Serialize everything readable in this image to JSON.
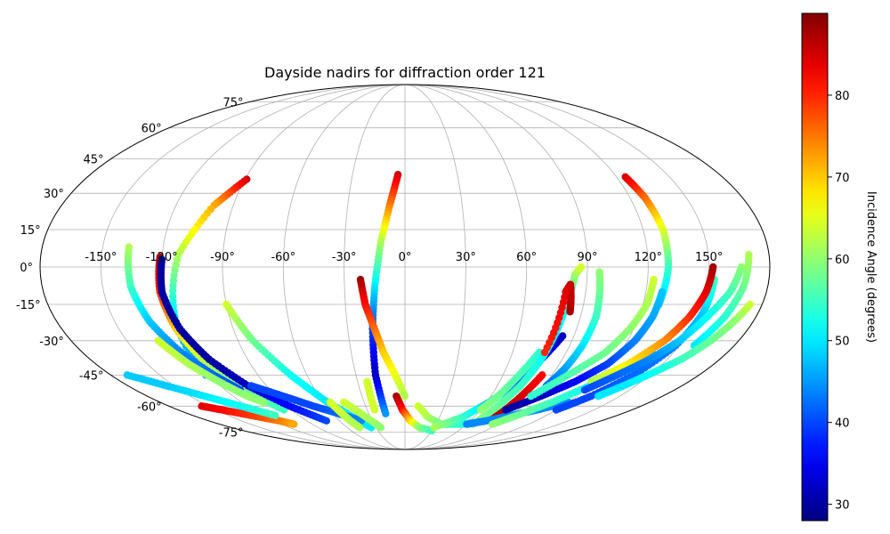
{
  "chart_data": {
    "type": "scatter",
    "projection": "mollweide",
    "title": "Dayside nadirs for diffraction order 121",
    "xlabel": "",
    "ylabel": "",
    "lon_ticks": [
      "-150°",
      "-120°",
      "-90°",
      "-60°",
      "-30°",
      "0°",
      "30°",
      "60°",
      "90°",
      "120°",
      "150°"
    ],
    "lon_tick_values": [
      -150,
      -120,
      -90,
      -60,
      -30,
      0,
      30,
      60,
      90,
      120,
      150
    ],
    "lat_ticks": [
      "75°",
      "60°",
      "45°",
      "30°",
      "15°",
      "0°",
      "-15°",
      "-30°",
      "-45°",
      "-60°",
      "-75°"
    ],
    "lat_tick_values": [
      75,
      60,
      45,
      30,
      15,
      0,
      -15,
      -30,
      -45,
      -60,
      -75
    ],
    "grid": true,
    "colormap": "jet",
    "colorbar": {
      "label": "Incidence Angle (degrees)",
      "range": [
        28,
        90
      ],
      "ticks": [
        "30",
        "40",
        "50",
        "60",
        "70",
        "80"
      ],
      "tick_values": [
        30,
        40,
        50,
        60,
        70,
        80
      ]
    },
    "series": [
      {
        "lon": [
          -89,
          -100,
          -112,
          -118,
          -122
        ],
        "lat": [
          36,
          25,
          5,
          -20,
          -45
        ],
        "inc": [
          85,
          72,
          62,
          50,
          44
        ]
      },
      {
        "lon": [
          -121,
          -122,
          -120,
          -115,
          -108,
          -96
        ],
        "lat": [
          4,
          -10,
          -25,
          -40,
          -52,
          -62
        ],
        "inc": [
          88,
          80,
          70,
          62,
          58,
          55
        ]
      },
      {
        "lon": [
          -120,
          -121,
          -118,
          -112,
          -102,
          -88,
          -72
        ],
        "lat": [
          3,
          -10,
          -25,
          -38,
          -50,
          -60,
          -68
        ],
        "inc": [
          30,
          30,
          30,
          30,
          32,
          36,
          40
        ]
      },
      {
        "lon": [
          -137,
          -136,
          -132,
          -125,
          -117,
          -110
        ],
        "lat": [
          8,
          -8,
          -22,
          -35,
          -45,
          -52
        ],
        "inc": [
          62,
          55,
          48,
          44,
          42,
          40
        ]
      },
      {
        "lon": [
          -133,
          -126,
          -118,
          -110,
          -104
        ],
        "lat": [
          -30,
          -40,
          -48,
          -55,
          -58
        ],
        "inc": [
          64,
          62,
          60,
          60,
          60
        ]
      },
      {
        "lon": [
          -155,
          -145,
          -135,
          -125,
          -115,
          -108
        ],
        "lat": [
          -60,
          -62,
          -64,
          -66,
          -68,
          -70
        ],
        "inc": [
          84,
          82,
          80,
          78,
          75,
          72
        ]
      },
      {
        "lon": [
          -170,
          -155,
          -140,
          -125,
          -110
        ],
        "lat": [
          -45,
          -50,
          -55,
          -60,
          -65
        ],
        "inc": [
          48,
          48,
          50,
          52,
          55
        ]
      },
      {
        "lon": [
          -90,
          -82,
          -70,
          -58,
          -45,
          -35
        ],
        "lat": [
          -15,
          -30,
          -45,
          -57,
          -66,
          -72
        ],
        "inc": [
          64,
          58,
          52,
          50,
          50,
          50
        ]
      },
      {
        "lon": [
          -100,
          -85,
          -70,
          -55,
          -40
        ],
        "lat": [
          -50,
          -55,
          -60,
          -64,
          -68
        ],
        "inc": [
          40,
          40,
          40,
          42,
          44
        ]
      },
      {
        "lon": [
          -55,
          -52,
          -50,
          -47
        ],
        "lat": [
          -58,
          -64,
          -68,
          -72
        ],
        "inc": [
          64,
          64,
          62,
          62
        ]
      },
      {
        "lon": [
          -45,
          -35,
          -25
        ],
        "lat": [
          -58,
          -65,
          -72
        ],
        "inc": [
          64,
          62,
          60
        ]
      },
      {
        "lon": [
          -24,
          -24,
          -24
        ],
        "lat": [
          -48,
          -55,
          -62
        ],
        "inc": [
          64,
          64,
          64
        ]
      },
      {
        "lon": [
          -4,
          -8,
          -12,
          -15,
          -17,
          -18,
          -16
        ],
        "lat": [
          38,
          25,
          10,
          -8,
          -25,
          -45,
          -64
        ],
        "inc": [
          85,
          75,
          62,
          50,
          40,
          32,
          45
        ]
      },
      {
        "lon": [
          -22,
          -20,
          -16,
          -12,
          -6,
          0
        ],
        "lat": [
          -5,
          -15,
          -25,
          -35,
          -45,
          -55
        ],
        "inc": [
          88,
          82,
          76,
          70,
          66,
          62
        ]
      },
      {
        "lon": [
          -6,
          -2,
          5,
          15,
          30
        ],
        "lat": [
          -55,
          -62,
          -68,
          -72,
          -74
        ],
        "inc": [
          88,
          82,
          70,
          60,
          55
        ]
      },
      {
        "lon": [
          10,
          20,
          35,
          55,
          75
        ],
        "lat": [
          -60,
          -66,
          -70,
          -70,
          -68
        ],
        "inc": [
          64,
          62,
          58,
          54,
          50
        ]
      },
      {
        "lon": [
          30,
          50,
          62,
          72,
          78,
          84
        ],
        "lat": [
          -72,
          -66,
          -58,
          -48,
          -38,
          -28
        ],
        "inc": [
          62,
          55,
          48,
          40,
          35,
          32
        ]
      },
      {
        "lon": [
          60,
          65,
          70,
          75
        ],
        "lat": [
          -62,
          -55,
          -45,
          -35
        ],
        "inc": [
          60,
          58,
          56,
          54
        ]
      },
      {
        "lon": [
          66,
          70,
          75,
          78,
          80,
          82,
          84,
          87
        ],
        "lat": [
          -70,
          -62,
          -50,
          -38,
          -25,
          -12,
          -3,
          0
        ],
        "inc": [
          60,
          58,
          55,
          52,
          50,
          55,
          60,
          64
        ]
      },
      {
        "lon": [
          84,
          83,
          82,
          80,
          78
        ],
        "lat": [
          -18,
          -12,
          -7,
          -10,
          -35
        ],
        "inc": [
          88,
          86,
          86,
          84,
          80
        ]
      },
      {
        "lon": [
          96,
          97,
          98,
          97,
          95,
          92
        ],
        "lat": [
          -2,
          -10,
          -20,
          -32,
          -42,
          -50
        ],
        "inc": [
          60,
          58,
          55,
          50,
          46,
          42
        ]
      },
      {
        "lon": [
          78,
          80,
          82,
          84
        ],
        "lat": [
          -68,
          -60,
          -52,
          -45
        ],
        "inc": [
          88,
          86,
          84,
          82
        ]
      },
      {
        "lon": [
          60,
          75,
          90,
          105,
          120
        ],
        "lat": [
          -70,
          -68,
          -65,
          -62,
          -58
        ],
        "inc": [
          44,
          44,
          44,
          44,
          44
        ]
      },
      {
        "lon": [
          85,
          95,
          108,
          120,
          130,
          138
        ],
        "lat": [
          -70,
          -65,
          -58,
          -50,
          -42,
          -35
        ],
        "inc": [
          60,
          58,
          55,
          52,
          50,
          48
        ]
      },
      {
        "lon": [
          120,
          130,
          140,
          148,
          152,
          153
        ],
        "lat": [
          -62,
          -55,
          -45,
          -32,
          -18,
          -5
        ],
        "inc": [
          40,
          40,
          42,
          44,
          48,
          55
        ]
      },
      {
        "lon": [
          125,
          128,
          130,
          130,
          128
        ],
        "lat": [
          37,
          28,
          15,
          0,
          -15
        ],
        "inc": [
          85,
          76,
          65,
          55,
          48
        ]
      },
      {
        "lon": [
          128,
          127,
          124,
          118,
          108,
          95,
          80
        ],
        "lat": [
          -10,
          -20,
          -30,
          -40,
          -48,
          -55,
          -62
        ],
        "inc": [
          48,
          46,
          44,
          40,
          36,
          32,
          30
        ]
      },
      {
        "lon": [
          152,
          150,
          146,
          140,
          130,
          118
        ],
        "lat": [
          0,
          -10,
          -20,
          -30,
          -40,
          -48
        ],
        "inc": [
          88,
          84,
          80,
          74,
          68,
          62
        ]
      },
      {
        "lon": [
          123,
          122,
          118,
          112,
          100,
          88
        ],
        "lat": [
          -5,
          -15,
          -25,
          -35,
          -45,
          -55
        ],
        "inc": [
          64,
          62,
          60,
          58,
          56,
          54
        ]
      },
      {
        "lon": [
          166,
          162,
          155,
          148,
          140,
          130,
          120
        ],
        "lat": [
          0,
          -10,
          -20,
          -30,
          -38,
          -45,
          -52
        ],
        "inc": [
          60,
          56,
          52,
          48,
          44,
          42,
          40
        ]
      },
      {
        "lon": [
          170,
          168,
          164,
          158
        ],
        "lat": [
          5,
          -8,
          -20,
          -32
        ],
        "inc": [
          62,
          58,
          54,
          50
        ]
      },
      {
        "lon": [
          174,
          170,
          165,
          158,
          150,
          142,
          135
        ],
        "lat": [
          -15,
          -22,
          -30,
          -38,
          -44,
          -50,
          -55
        ],
        "inc": [
          64,
          60,
          58,
          55,
          52,
          50,
          50
        ]
      }
    ]
  }
}
